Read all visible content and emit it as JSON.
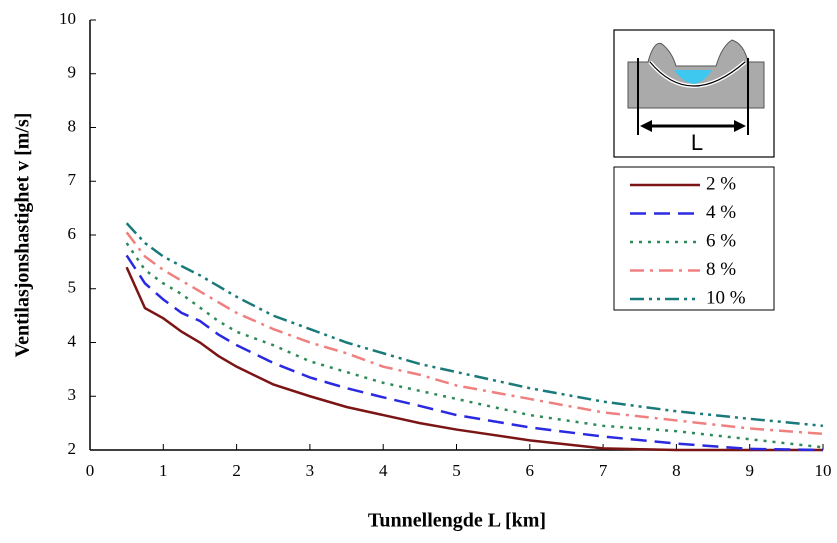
{
  "chart_data": {
    "type": "line",
    "xlabel": "Tunnellengde L [km]",
    "ylabel": "Ventilasjonshastighet v [m/s]",
    "inset_label": "L",
    "x": [
      0.5,
      0.75,
      1,
      1.25,
      1.5,
      1.75,
      2,
      2.5,
      3,
      3.5,
      4,
      4.5,
      5,
      6,
      7,
      8,
      9,
      10
    ],
    "series": [
      {
        "name": "2 %",
        "color": "#7b1515",
        "dash": "solid",
        "values": [
          5.4,
          4.64,
          4.45,
          4.2,
          4.0,
          3.75,
          3.55,
          3.22,
          3.0,
          2.8,
          2.65,
          2.5,
          2.38,
          2.18,
          2.03,
          2.0,
          2.0,
          2.0
        ]
      },
      {
        "name": "4 %",
        "color": "#2a2ae0",
        "dash": "dashed",
        "values": [
          5.62,
          5.1,
          4.8,
          4.55,
          4.4,
          4.15,
          3.95,
          3.62,
          3.35,
          3.15,
          2.98,
          2.82,
          2.65,
          2.42,
          2.25,
          2.12,
          2.02,
          2.0
        ]
      },
      {
        "name": "6 %",
        "color": "#2e8b57",
        "dash": "dotted",
        "values": [
          5.85,
          5.35,
          5.1,
          4.9,
          4.65,
          4.4,
          4.2,
          3.95,
          3.65,
          3.45,
          3.25,
          3.1,
          2.95,
          2.65,
          2.45,
          2.35,
          2.2,
          2.05
        ]
      },
      {
        "name": "8 %",
        "color": "#f08080",
        "dash": "dashdot",
        "values": [
          6.05,
          5.6,
          5.35,
          5.15,
          4.95,
          4.75,
          4.55,
          4.25,
          4.0,
          3.8,
          3.55,
          3.4,
          3.2,
          2.95,
          2.7,
          2.55,
          2.4,
          2.3
        ]
      },
      {
        "name": "10 %",
        "color": "#1a7a7a",
        "dash": "dashdotdot",
        "values": [
          6.22,
          5.85,
          5.6,
          5.42,
          5.25,
          5.05,
          4.85,
          4.5,
          4.25,
          4.0,
          3.8,
          3.6,
          3.45,
          3.15,
          2.9,
          2.72,
          2.58,
          2.45
        ]
      }
    ],
    "xlim": [
      0,
      10
    ],
    "xticks": [
      0,
      1,
      2,
      3,
      4,
      5,
      6,
      7,
      8,
      9,
      10
    ],
    "ylim": [
      2,
      10
    ],
    "yticks": [
      2,
      3,
      4,
      5,
      6,
      7,
      8,
      9,
      10
    ],
    "grid": false,
    "legend": "upper right"
  }
}
